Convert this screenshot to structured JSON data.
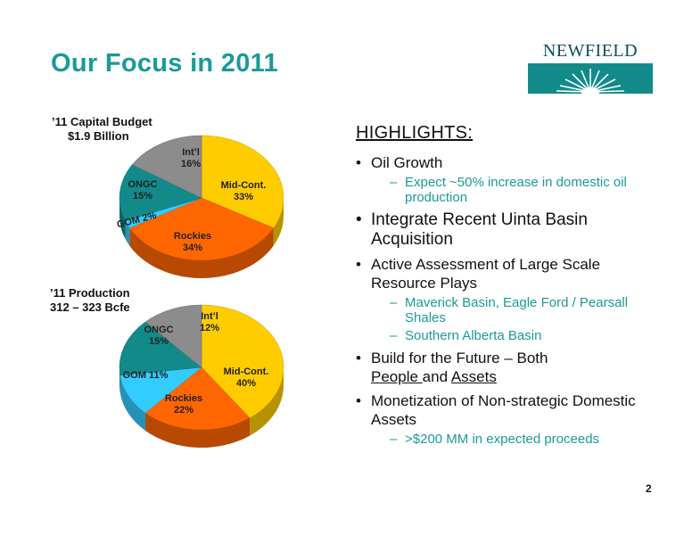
{
  "slide": {
    "title": "Our Focus in 2011",
    "logo_text": "NEWFIELD",
    "page_number": "2"
  },
  "budget_chart": {
    "label_line1": "’11 Capital Budget",
    "label_line2": "$1.9 Billion"
  },
  "production_chart": {
    "label_line1": "’11 Production",
    "label_line2": "312 – 323 Bcfe"
  },
  "chart_data": [
    {
      "type": "pie",
      "title": "’11 Capital Budget $1.9 Billion",
      "categories": [
        "Mid-Cont.",
        "Rockies",
        "GOM",
        "ONGC",
        "Int’l"
      ],
      "values": [
        33,
        34,
        2,
        15,
        16
      ],
      "labels": [
        "33%",
        "34%",
        "2%",
        "15%",
        "16%"
      ],
      "colors": [
        "#ffcc00",
        "#ff6600",
        "#33ccff",
        "#138a8a",
        "#8c8c8c"
      ]
    },
    {
      "type": "pie",
      "title": "’11 Production 312 – 323 Bcfe",
      "categories": [
        "Mid-Cont.",
        "Rockies",
        "GOM",
        "ONGC",
        "Int’l"
      ],
      "values": [
        40,
        22,
        11,
        15,
        12
      ],
      "labels": [
        "40%",
        "22%",
        "11%",
        "15%",
        "12%"
      ],
      "colors": [
        "#ffcc00",
        "#ff6600",
        "#33ccff",
        "#138a8a",
        "#8c8c8c"
      ]
    }
  ],
  "highlights": {
    "heading": "HIGHLIGHTS:",
    "oil_growth": "Oil Growth",
    "oil_growth_sub": "Expect ~50% increase in domestic oil production",
    "uinta": "Integrate Recent Uinta Basin Acquisition",
    "assessment": "Active Assessment of Large Scale Resource Plays",
    "assessment_sub1": "Maverick Basin, Eagle Ford / Pearsall Shales",
    "assessment_sub2": "Southern Alberta Basin",
    "future_prefix": "Build for the Future – Both",
    "future_people": "People ",
    "future_and": "and ",
    "future_assets": "Assets",
    "monetization": "Monetization of Non-strategic Domestic Assets",
    "monetization_sub": ">$200 MM in expected proceeds"
  },
  "colors": {
    "title": "#1a9a9a",
    "sub_bullet": "#1a9a9a",
    "logo_box": "#138a8a"
  }
}
